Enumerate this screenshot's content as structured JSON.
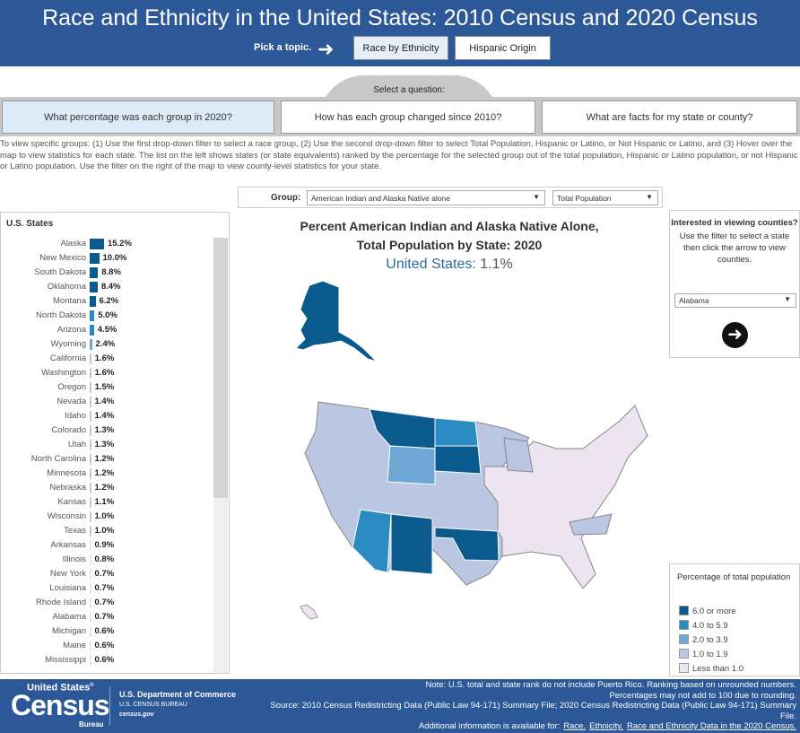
{
  "header": {
    "title": "Race and Ethnicity in the United States: 2010 Census and 2020 Census",
    "pick_label": "Pick a topic.",
    "topics": [
      "Race by Ethnicity",
      "Hispanic Origin"
    ]
  },
  "question": {
    "label": "Select a question:",
    "options": [
      "What percentage was each group in 2020?",
      "How has each group changed since 2010?",
      "What are facts for my state or county?"
    ]
  },
  "instructions": "To view specific groups: (1) Use the first drop-down filter to select a race group, (2) Use the second drop-down filter to select Total Population, Hispanic or Latino, or Not Hispanic or Latino, and (3) Hover over the map to view statistics for each state. The list on the left shows states (or state equivalents) ranked by the percentage for the selected group out of the total population, Hispanic or Latino population, or not Hispanic or Latino population. Use the filter on the right of the map to view county-level statistics for your state.",
  "filters": {
    "group_label": "Group:",
    "group_value": "American Indian and Alaska Native alone",
    "population_value": "Total Population"
  },
  "states_list": {
    "title": "U.S. States",
    "items": [
      [
        "Alaska",
        15.2,
        "15.2%"
      ],
      [
        "New Mexico",
        10.0,
        "10.0%"
      ],
      [
        "South Dakota",
        8.8,
        "8.8%"
      ],
      [
        "Oklahoma",
        8.4,
        "8.4%"
      ],
      [
        "Montana",
        6.2,
        "6.2%"
      ],
      [
        "North Dakota",
        5.0,
        "5.0%"
      ],
      [
        "Arizona",
        4.5,
        "4.5%"
      ],
      [
        "Wyoming",
        2.4,
        "2.4%"
      ],
      [
        "California",
        1.6,
        "1.6%"
      ],
      [
        "Washington",
        1.6,
        "1.6%"
      ],
      [
        "Oregon",
        1.5,
        "1.5%"
      ],
      [
        "Nevada",
        1.4,
        "1.4%"
      ],
      [
        "Idaho",
        1.4,
        "1.4%"
      ],
      [
        "Colorado",
        1.3,
        "1.3%"
      ],
      [
        "Utah",
        1.3,
        "1.3%"
      ],
      [
        "North Carolina",
        1.2,
        "1.2%"
      ],
      [
        "Minnesota",
        1.2,
        "1.2%"
      ],
      [
        "Nebraska",
        1.2,
        "1.2%"
      ],
      [
        "Kansas",
        1.1,
        "1.1%"
      ],
      [
        "Wisconsin",
        1.0,
        "1.0%"
      ],
      [
        "Texas",
        1.0,
        "1.0%"
      ],
      [
        "Arkansas",
        0.9,
        "0.9%"
      ],
      [
        "Illinois",
        0.8,
        "0.8%"
      ],
      [
        "New York",
        0.7,
        "0.7%"
      ],
      [
        "Louisiana",
        0.7,
        "0.7%"
      ],
      [
        "Rhode Island",
        0.7,
        "0.7%"
      ],
      [
        "Alabama",
        0.7,
        "0.7%"
      ],
      [
        "Michigan",
        0.6,
        "0.6%"
      ],
      [
        "Maine",
        0.6,
        "0.6%"
      ],
      [
        "Mississippi",
        0.6,
        "0.6%"
      ]
    ]
  },
  "map": {
    "title_line1": "Percent American Indian and Alaska Native Alone,",
    "title_line2": "Total Population by State: 2020",
    "us_label": "United States:",
    "us_value": "1.1%"
  },
  "county": {
    "question": "Interested in viewing counties?",
    "help": "Use the filter to select a state then click the arrow to view counties.",
    "state_value": "Alabama"
  },
  "legend": {
    "title": "Percentage of total population",
    "items": [
      {
        "label": "6.0 or more",
        "color": "#0b5a8e"
      },
      {
        "label": "4.0 to 5.9",
        "color": "#2a8ac2"
      },
      {
        "label": "2.0 to 3.9",
        "color": "#6ea6d6"
      },
      {
        "label": "1.0 to 1.9",
        "color": "#bac6e2"
      },
      {
        "label": "Less than 1.0",
        "color": "#ece4f1"
      }
    ]
  },
  "footer": {
    "logo": "United States Census Bureau",
    "dept": "U.S. Department of Commerce",
    "bureau": "U.S. CENSUS BUREAU",
    "site": "census.gov",
    "note1": "Note: U.S. total and state rank do not include Puerto Rico. Ranking based on unrounded numbers.",
    "note2": "Percentages may not add to 100 due to rounding.",
    "source": "Source: 2010 Census Redistricting Data (Public Law 94-171) Summary File; 2020 Census Redistricting Data (Public Law 94-171) Summary File.",
    "more": "Additional information is available for:",
    "links": [
      "Race.",
      "Ethnicity.",
      "Race and Ethnicity Data in the 2020 Census."
    ]
  }
}
